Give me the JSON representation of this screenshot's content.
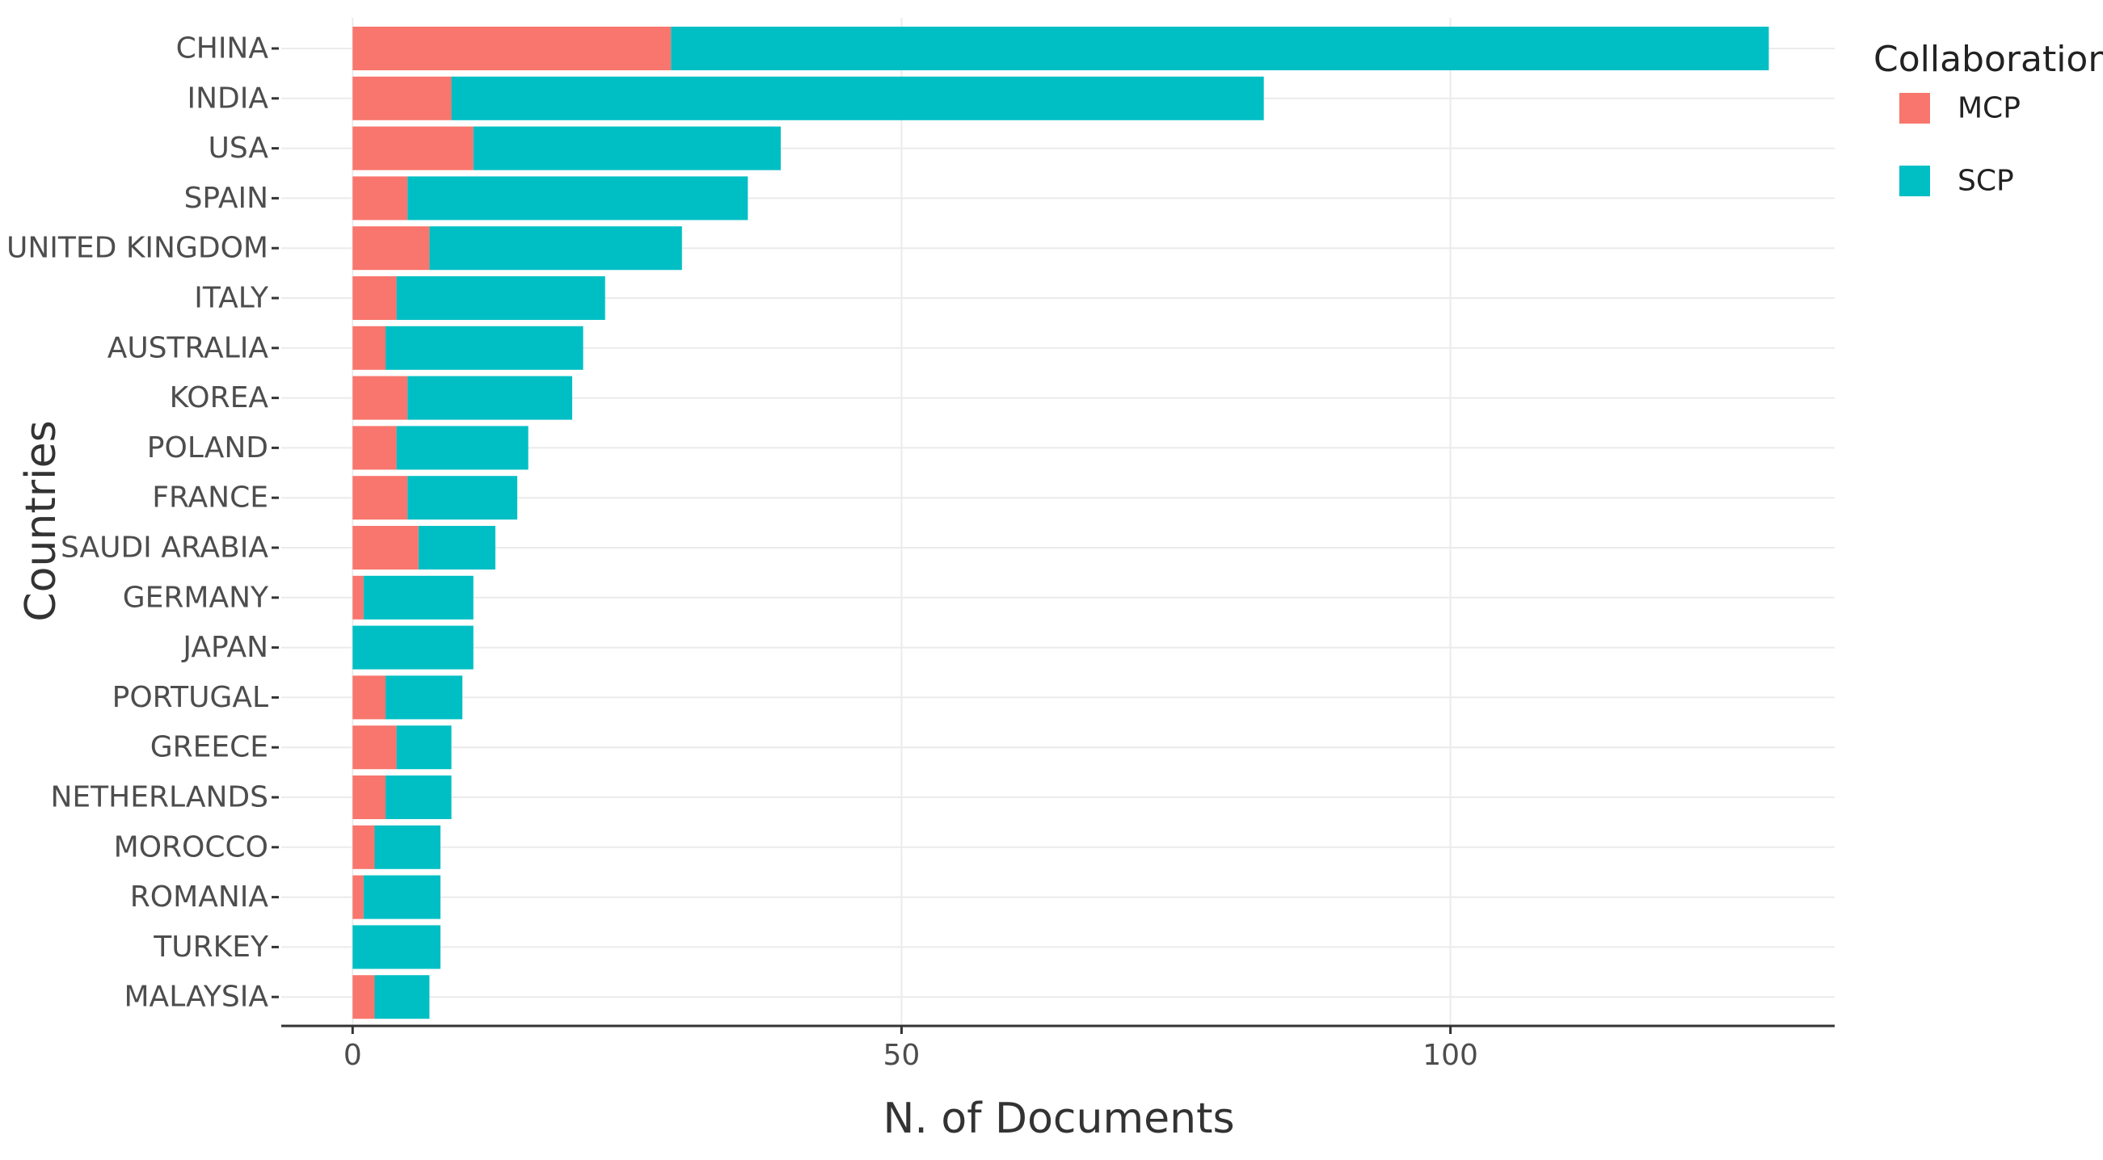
{
  "chart_data": {
    "type": "bar",
    "orientation": "horizontal",
    "stacked": true,
    "title": "",
    "xlabel": "N. of Documents",
    "ylabel": "Countries",
    "xlim": [
      -6.5,
      135
    ],
    "xticks": [
      0,
      50,
      100
    ],
    "grid": true,
    "legend_position": "right",
    "legend_title": "Collaboration",
    "categories": [
      "CHINA",
      "INDIA",
      "USA",
      "SPAIN",
      "UNITED KINGDOM",
      "ITALY",
      "AUSTRALIA",
      "KOREA",
      "POLAND",
      "FRANCE",
      "SAUDI ARABIA",
      "GERMANY",
      "JAPAN",
      "PORTUGAL",
      "GREECE",
      "NETHERLANDS",
      "MOROCCO",
      "ROMANIA",
      "TURKEY",
      "MALAYSIA"
    ],
    "series": [
      {
        "name": "MCP",
        "color": "#f8766d",
        "values": [
          29,
          9,
          11,
          5,
          7,
          4,
          3,
          5,
          4,
          5,
          6,
          1,
          0,
          3,
          4,
          3,
          2,
          1,
          0,
          2
        ]
      },
      {
        "name": "SCP",
        "color": "#00bfc4",
        "values": [
          100,
          74,
          28,
          31,
          23,
          19,
          18,
          15,
          12,
          10,
          7,
          10,
          11,
          7,
          5,
          6,
          6,
          7,
          8,
          5
        ]
      }
    ]
  }
}
